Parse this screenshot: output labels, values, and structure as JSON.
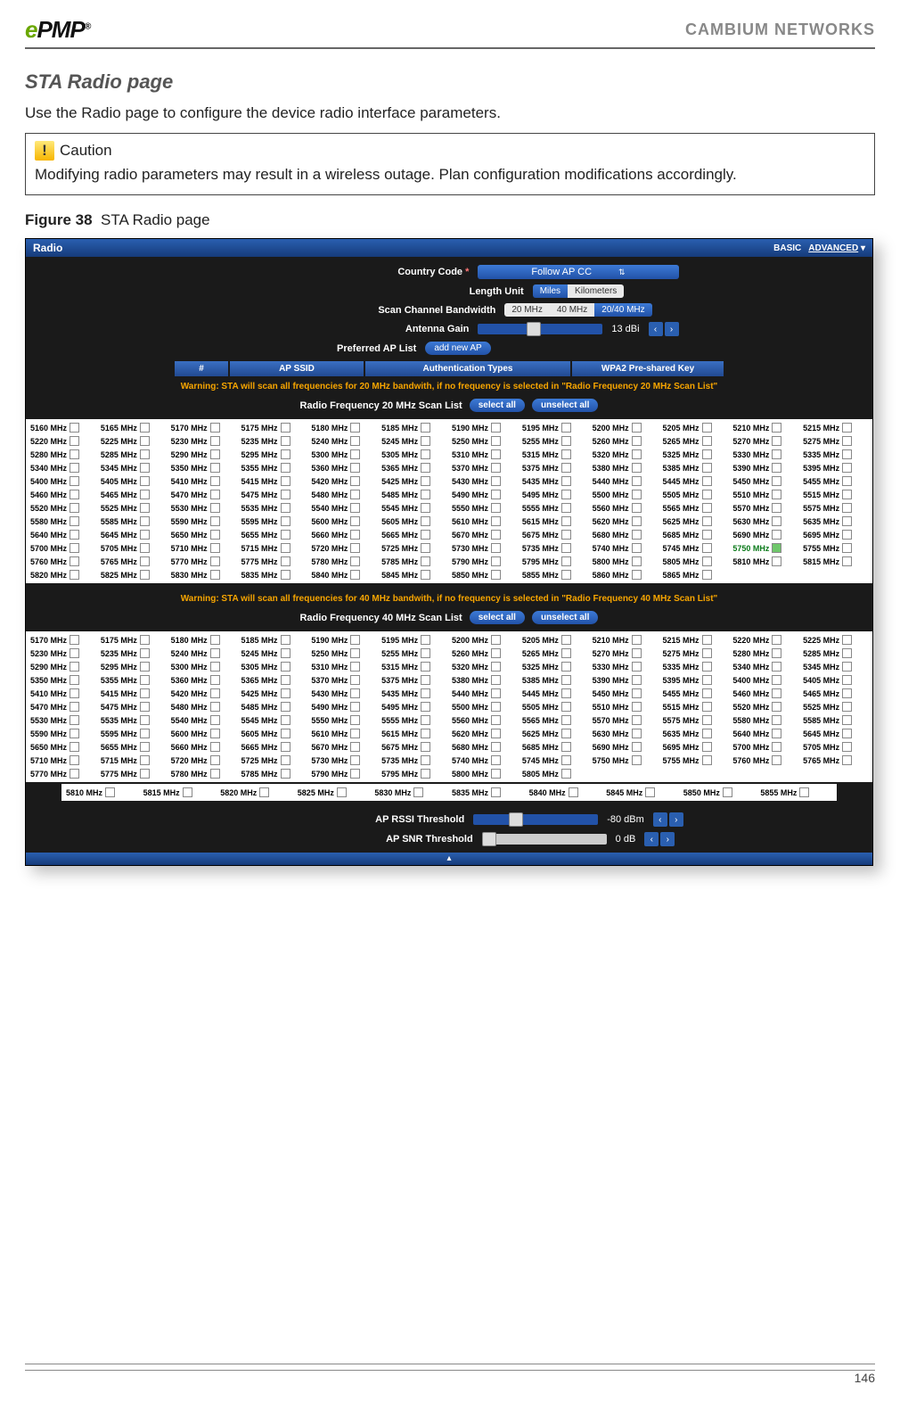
{
  "header": {
    "company": "CAMBIUM NETWORKS"
  },
  "section": {
    "title": "STA Radio page",
    "intro": "Use the Radio page to configure the device radio interface parameters."
  },
  "caution": {
    "label": "Caution",
    "text": "Modifying radio parameters may result in a wireless outage. Plan configuration modifications accordingly."
  },
  "figure": {
    "num": "Figure 38",
    "caption": "STA Radio page"
  },
  "radio": {
    "panel_title": "Radio",
    "mode_basic": "BASIC",
    "mode_advanced": "ADVANCED",
    "country_code_label": "Country Code",
    "country_code_value": "Follow AP CC",
    "length_unit_label": "Length Unit",
    "length_unit_opts": [
      "Miles",
      "Kilometers"
    ],
    "length_unit_sel": "Miles",
    "scan_bw_label": "Scan Channel Bandwidth",
    "scan_bw_opts": [
      "20 MHz",
      "40 MHz",
      "20/40 MHz"
    ],
    "scan_bw_sel": "20/40 MHz",
    "antenna_gain_label": "Antenna Gain",
    "antenna_gain_value": "13 dBi",
    "pref_ap_label": "Preferred AP List",
    "add_ap_btn": "add new AP",
    "ap_cols": {
      "num": "#",
      "ssid": "AP SSID",
      "auth": "Authentication Types",
      "wpa": "WPA2 Pre-shared Key"
    },
    "warn20": "Warning: STA will scan all frequencies for 20 MHz bandwith, if no frequency is selected in \"Radio Frequency 20 MHz Scan List\"",
    "scan20_label": "Radio Frequency 20 MHz Scan List",
    "warn40": "Warning: STA will scan all frequencies for 40 MHz bandwith, if no frequency is selected in \"Radio Frequency 40 MHz Scan List\"",
    "scan40_label": "Radio Frequency 40 MHz Scan List",
    "select_all": "select all",
    "unselect_all": "unselect all",
    "freq20_start": 5160,
    "freq20_end": 5865,
    "freq20_step": 5,
    "freq20_selected": 5750,
    "freq40_start": 5170,
    "freq40_end": 5805,
    "freq40_step": 5,
    "freq40b_start": 5810,
    "freq40b_end": 5855,
    "freq40b_step": 5,
    "rssi_label": "AP RSSI Threshold",
    "rssi_value": "-80 dBm",
    "snr_label": "AP SNR Threshold",
    "snr_value": "0 dB"
  },
  "colors": {
    "header_grad_a": "#2a5fb0",
    "header_grad_b": "#163b7a",
    "warn": "#f7a500",
    "sel_green": "#0a7a1a"
  },
  "pagenum": "146"
}
